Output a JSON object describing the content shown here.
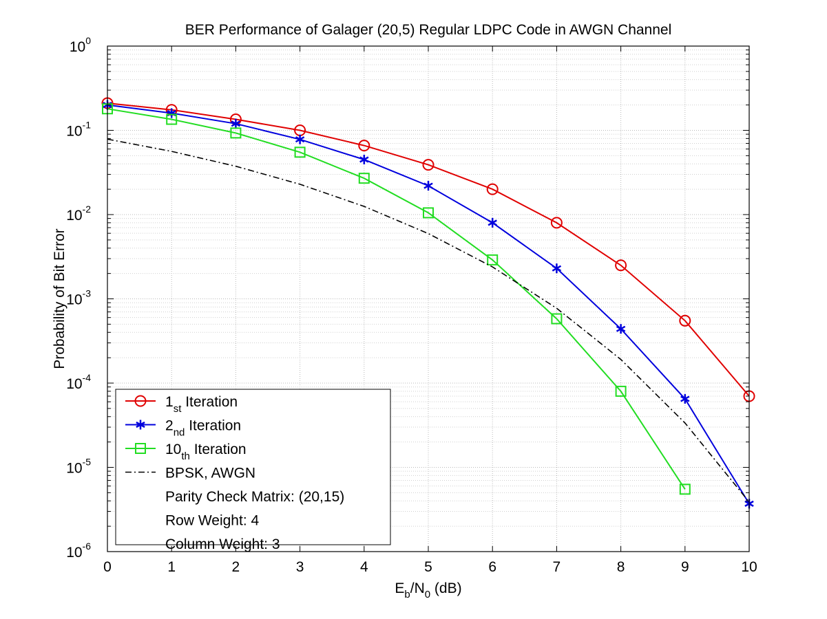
{
  "chart_data": {
    "type": "line",
    "title": "BER Performance of Galager (20,5) Regular LDPC Code in AWGN Channel",
    "xlabel": {
      "main": "E",
      "sub1": "b",
      "mid": "/N",
      "sub2": "0",
      "tail": " (dB)"
    },
    "ylabel": "Probability of Bit Error",
    "xlim": [
      0,
      10
    ],
    "ylim": [
      1e-06,
      1
    ],
    "yscale": "log",
    "grid": true,
    "x_ticks": [
      "0",
      "1",
      "2",
      "3",
      "4",
      "5",
      "6",
      "7",
      "8",
      "9",
      "10"
    ],
    "y_ticks": [
      {
        "base": "10",
        "exp": "0",
        "value": 1
      },
      {
        "base": "10",
        "exp": "-1",
        "value": 0.1
      },
      {
        "base": "10",
        "exp": "-2",
        "value": 0.01
      },
      {
        "base": "10",
        "exp": "-3",
        "value": 0.001
      },
      {
        "base": "10",
        "exp": "-4",
        "value": 0.0001
      },
      {
        "base": "10",
        "exp": "-5",
        "value": 1e-05
      },
      {
        "base": "10",
        "exp": "-6",
        "value": 1e-06
      }
    ],
    "series": [
      {
        "name": "1st Iteration",
        "label_main": "1",
        "label_sub": "st",
        "label_tail": " Iteration",
        "color": "#e00000",
        "marker": "circle",
        "line": "solid",
        "x": [
          0,
          1,
          2,
          3,
          4,
          5,
          6,
          7,
          8,
          9,
          10
        ],
        "y": [
          0.21,
          0.175,
          0.135,
          0.1,
          0.066,
          0.039,
          0.02,
          0.008,
          0.0025,
          0.00055,
          7e-05
        ]
      },
      {
        "name": "2nd Iteration",
        "label_main": "2",
        "label_sub": "nd",
        "label_tail": " Iteration",
        "color": "#0000dd",
        "marker": "star",
        "line": "solid",
        "x": [
          0,
          1,
          2,
          3,
          4,
          5,
          6,
          7,
          8,
          9,
          10
        ],
        "y": [
          0.2,
          0.16,
          0.12,
          0.078,
          0.045,
          0.022,
          0.008,
          0.0023,
          0.00044,
          6.5e-05,
          3.7e-06
        ]
      },
      {
        "name": "10th Iteration",
        "label_main": "10",
        "label_sub": "th",
        "label_tail": " Iteration",
        "color": "#22dd22",
        "marker": "square",
        "line": "solid",
        "x": [
          0,
          1,
          2,
          3,
          4,
          5,
          6,
          7,
          8,
          9
        ],
        "y": [
          0.18,
          0.135,
          0.093,
          0.055,
          0.027,
          0.0105,
          0.0029,
          0.00058,
          8e-05,
          5.5e-06
        ]
      },
      {
        "name": "BPSK, AWGN",
        "label_main": "BPSK, AWGN",
        "label_sub": "",
        "label_tail": "",
        "color": "#000000",
        "marker": "none",
        "line": "dashdot",
        "x": [
          0,
          1,
          2,
          3,
          4,
          5,
          6,
          7,
          8,
          9,
          10
        ],
        "y": [
          0.0786,
          0.0563,
          0.0375,
          0.0229,
          0.0125,
          0.00595,
          0.00239,
          0.000773,
          0.000191,
          3.36e-05,
          3.87e-06
        ]
      }
    ],
    "legend_notes": [
      "Parity Check Matrix: (20,15)",
      "Row Weight: 4",
      "Column Weight: 3"
    ],
    "legend_position": "bottom-left"
  }
}
